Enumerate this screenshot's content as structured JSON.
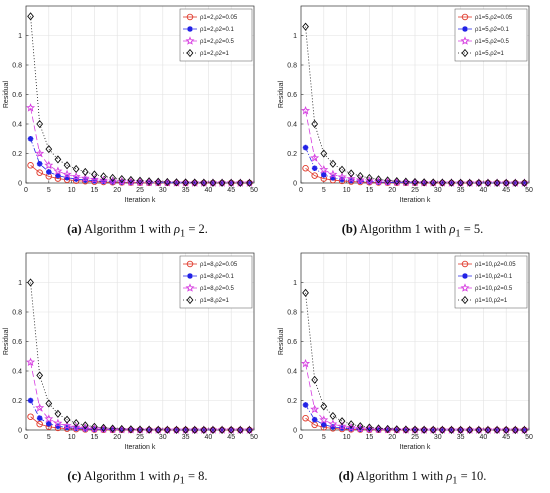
{
  "chart_data": [
    {
      "type": "line",
      "caption": {
        "label": "(a)",
        "text": "Algorithm 1 with",
        "math": "ρ",
        "sub": "1",
        "value": " = 2."
      },
      "xlabel": "Iteration k",
      "ylabel": "Residual",
      "xlim": [
        0,
        50
      ],
      "ylim": [
        0,
        1.2
      ],
      "xticks": [
        0,
        5,
        10,
        15,
        20,
        25,
        30,
        35,
        40,
        45,
        50
      ],
      "yticks": [
        0,
        0.2,
        0.4,
        0.6,
        0.8,
        1
      ],
      "grid": true,
      "legend_position": "top-right",
      "series": [
        {
          "name": "ρ1=2,ρ2=0.05",
          "values": [
            0.12,
            0.07,
            0.045,
            0.03,
            0.022,
            0.016,
            0.012,
            0.009,
            0.007,
            0.005,
            0.004,
            0.003,
            0.002,
            0.0015,
            0.001,
            0.0008,
            0.0006,
            0.0005,
            0.0004,
            0.0003,
            0.0002,
            0.0002,
            0.0001,
            0.0001,
            0.0001
          ]
        },
        {
          "name": "ρ1=2,ρ2=0.1",
          "values": [
            0.3,
            0.13,
            0.075,
            0.05,
            0.036,
            0.027,
            0.02,
            0.015,
            0.011,
            0.008,
            0.006,
            0.0045,
            0.0035,
            0.0025,
            0.002,
            0.0015,
            0.001,
            0.0008,
            0.0006,
            0.0005,
            0.0004,
            0.0003,
            0.0002,
            0.0002,
            0.0001
          ]
        },
        {
          "name": "ρ1=2,ρ2=0.5",
          "values": [
            0.51,
            0.2,
            0.12,
            0.08,
            0.058,
            0.043,
            0.032,
            0.024,
            0.018,
            0.013,
            0.0095,
            0.007,
            0.005,
            0.0038,
            0.0028,
            0.002,
            0.0015,
            0.0011,
            0.0008,
            0.0006,
            0.0004,
            0.0003,
            0.0002,
            0.0002,
            0.0001
          ]
        },
        {
          "name": "ρ1=2,ρ2=1",
          "values": [
            1.13,
            0.4,
            0.23,
            0.16,
            0.12,
            0.095,
            0.075,
            0.058,
            0.045,
            0.035,
            0.027,
            0.021,
            0.016,
            0.012,
            0.009,
            0.007,
            0.005,
            0.004,
            0.003,
            0.0022,
            0.0016,
            0.0012,
            0.0009,
            0.0007,
            0.0005
          ]
        }
      ]
    },
    {
      "type": "line",
      "caption": {
        "label": "(b)",
        "text": "Algorithm 1 with",
        "math": "ρ",
        "sub": "1",
        "value": " = 5."
      },
      "xlabel": "Iteration k",
      "ylabel": "Residual",
      "xlim": [
        0,
        50
      ],
      "ylim": [
        0,
        1.2
      ],
      "xticks": [
        0,
        5,
        10,
        15,
        20,
        25,
        30,
        35,
        40,
        45,
        50
      ],
      "yticks": [
        0,
        0.2,
        0.4,
        0.6,
        0.8,
        1
      ],
      "grid": true,
      "legend_position": "top-right",
      "series": [
        {
          "name": "ρ1=5,ρ2=0.05",
          "values": [
            0.1,
            0.05,
            0.03,
            0.02,
            0.014,
            0.01,
            0.007,
            0.005,
            0.0035,
            0.0025,
            0.0018,
            0.0013,
            0.001,
            0.0007,
            0.0005,
            0.0004,
            0.0003,
            0.0002,
            0.0002,
            0.0001,
            0.0001,
            0.0001,
            0.0001,
            0.0,
            0.0
          ]
        },
        {
          "name": "ρ1=5,ρ2=0.1",
          "values": [
            0.24,
            0.1,
            0.055,
            0.035,
            0.024,
            0.017,
            0.012,
            0.009,
            0.0065,
            0.0047,
            0.0034,
            0.0025,
            0.0018,
            0.0013,
            0.001,
            0.0007,
            0.0005,
            0.0004,
            0.0003,
            0.0002,
            0.0002,
            0.0001,
            0.0001,
            0.0001,
            0.0
          ]
        },
        {
          "name": "ρ1=5,ρ2=0.5",
          "values": [
            0.49,
            0.17,
            0.09,
            0.058,
            0.04,
            0.028,
            0.02,
            0.014,
            0.01,
            0.0073,
            0.0053,
            0.0038,
            0.0028,
            0.002,
            0.0015,
            0.0011,
            0.0008,
            0.0006,
            0.0004,
            0.0003,
            0.0002,
            0.0002,
            0.0001,
            0.0001,
            0.0001
          ]
        },
        {
          "name": "ρ1=5,ρ2=1",
          "values": [
            1.06,
            0.4,
            0.2,
            0.13,
            0.09,
            0.065,
            0.047,
            0.034,
            0.025,
            0.018,
            0.013,
            0.0095,
            0.007,
            0.005,
            0.0036,
            0.0026,
            0.0019,
            0.0014,
            0.001,
            0.0007,
            0.0005,
            0.0004,
            0.0003,
            0.0002,
            0.0002
          ]
        }
      ]
    },
    {
      "type": "line",
      "caption": {
        "label": "(c)",
        "text": "Algorithm 1 with",
        "math": "ρ",
        "sub": "1",
        "value": " = 8."
      },
      "xlabel": "Iteration k",
      "ylabel": "Residual",
      "xlim": [
        0,
        50
      ],
      "ylim": [
        0,
        1.2
      ],
      "xticks": [
        0,
        5,
        10,
        15,
        20,
        25,
        30,
        35,
        40,
        45,
        50
      ],
      "yticks": [
        0,
        0.2,
        0.4,
        0.6,
        0.8,
        1
      ],
      "grid": true,
      "legend_position": "top-right",
      "series": [
        {
          "name": "ρ1=8,ρ2=0.05",
          "values": [
            0.09,
            0.04,
            0.022,
            0.014,
            0.009,
            0.006,
            0.004,
            0.0027,
            0.0018,
            0.0012,
            0.0008,
            0.0005,
            0.0004,
            0.0003,
            0.0002,
            0.0001,
            0.0001,
            0.0001,
            0.0,
            0.0,
            0.0,
            0.0,
            0.0,
            0.0,
            0.0
          ]
        },
        {
          "name": "ρ1=8,ρ2=0.1",
          "values": [
            0.2,
            0.08,
            0.042,
            0.026,
            0.017,
            0.011,
            0.0075,
            0.005,
            0.0034,
            0.0023,
            0.0016,
            0.0011,
            0.0007,
            0.0005,
            0.0003,
            0.0002,
            0.0002,
            0.0001,
            0.0001,
            0.0001,
            0.0,
            0.0,
            0.0,
            0.0,
            0.0
          ]
        },
        {
          "name": "ρ1=8,ρ2=0.5",
          "values": [
            0.46,
            0.15,
            0.075,
            0.045,
            0.029,
            0.019,
            0.013,
            0.0085,
            0.0057,
            0.0038,
            0.0026,
            0.0017,
            0.0012,
            0.0008,
            0.0005,
            0.0004,
            0.0002,
            0.0002,
            0.0001,
            0.0001,
            0.0001,
            0.0,
            0.0,
            0.0,
            0.0
          ]
        },
        {
          "name": "ρ1=8,ρ2=1",
          "values": [
            1.0,
            0.37,
            0.18,
            0.11,
            0.07,
            0.047,
            0.032,
            0.022,
            0.015,
            0.01,
            0.007,
            0.0047,
            0.0032,
            0.0022,
            0.0015,
            0.001,
            0.0007,
            0.0005,
            0.0003,
            0.0002,
            0.0002,
            0.0001,
            0.0001,
            0.0001,
            0.0
          ]
        }
      ]
    },
    {
      "type": "line",
      "caption": {
        "label": "(d)",
        "text": "Algorithm 1 with",
        "math": "ρ",
        "sub": "1",
        "value": " = 10."
      },
      "xlabel": "Iteration k",
      "ylabel": "Residual",
      "xlim": [
        0,
        50
      ],
      "ylim": [
        0,
        1.2
      ],
      "xticks": [
        0,
        5,
        10,
        15,
        20,
        25,
        30,
        35,
        40,
        45,
        50
      ],
      "yticks": [
        0,
        0.2,
        0.4,
        0.6,
        0.8,
        1
      ],
      "grid": true,
      "legend_position": "top-right",
      "series": [
        {
          "name": "ρ1=10,ρ2=0.05",
          "values": [
            0.08,
            0.035,
            0.018,
            0.011,
            0.007,
            0.0045,
            0.003,
            0.002,
            0.0013,
            0.0008,
            0.0005,
            0.0004,
            0.0002,
            0.0002,
            0.0001,
            0.0001,
            0.0,
            0.0,
            0.0,
            0.0,
            0.0,
            0.0,
            0.0,
            0.0,
            0.0
          ]
        },
        {
          "name": "ρ1=10,ρ2=0.1",
          "values": [
            0.17,
            0.07,
            0.036,
            0.021,
            0.013,
            0.0085,
            0.0055,
            0.0036,
            0.0024,
            0.0016,
            0.001,
            0.0007,
            0.0005,
            0.0003,
            0.0002,
            0.0001,
            0.0001,
            0.0001,
            0.0,
            0.0,
            0.0,
            0.0,
            0.0,
            0.0,
            0.0
          ]
        },
        {
          "name": "ρ1=10,ρ2=0.5",
          "values": [
            0.45,
            0.14,
            0.068,
            0.04,
            0.025,
            0.016,
            0.0105,
            0.0068,
            0.0044,
            0.0029,
            0.0019,
            0.0012,
            0.0008,
            0.0005,
            0.0003,
            0.0002,
            0.0002,
            0.0001,
            0.0001,
            0.0,
            0.0,
            0.0,
            0.0,
            0.0,
            0.0
          ]
        },
        {
          "name": "ρ1=10,ρ2=1",
          "values": [
            0.93,
            0.34,
            0.16,
            0.095,
            0.06,
            0.039,
            0.026,
            0.017,
            0.011,
            0.0075,
            0.005,
            0.0033,
            0.0022,
            0.0015,
            0.001,
            0.0007,
            0.0004,
            0.0003,
            0.0002,
            0.0001,
            0.0001,
            0.0001,
            0.0,
            0.0,
            0.0
          ]
        }
      ]
    }
  ],
  "x_values": [
    1,
    3,
    5,
    7,
    9,
    11,
    13,
    15,
    17,
    19,
    21,
    23,
    25,
    27,
    29,
    31,
    33,
    35,
    37,
    39,
    41,
    43,
    45,
    47,
    49
  ],
  "styles": [
    {
      "color": "#e0392b",
      "marker": "circle",
      "dash": ""
    },
    {
      "color": "#2222e6",
      "marker": "asterisk",
      "dash": "5,2,1,2"
    },
    {
      "color": "#d63ee0",
      "marker": "star",
      "dash": "6,3"
    },
    {
      "color": "#111111",
      "marker": "diamond",
      "dash": "1,2"
    }
  ]
}
